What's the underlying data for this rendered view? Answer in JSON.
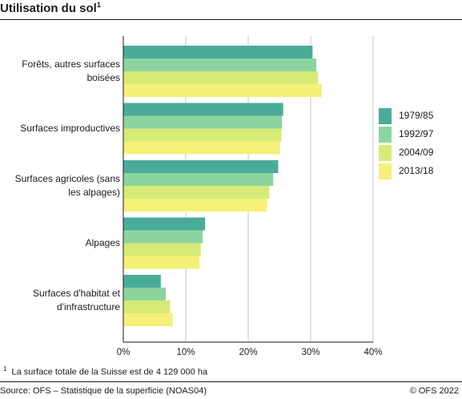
{
  "header": {
    "title": "Utilisation du sol",
    "title_marker": "1"
  },
  "chart_data": {
    "type": "bar",
    "orientation": "horizontal",
    "categories": [
      "Forêts, autres surfaces boisées",
      "Surfaces improductives",
      "Surfaces agricoles (sans les alpages)",
      "Alpages",
      "Surfaces d'habitat et d'infrastructure"
    ],
    "series": [
      {
        "name": "1979/85",
        "color": "#4aab9a",
        "values": [
          30.3,
          25.6,
          24.8,
          13.1,
          6.0
        ]
      },
      {
        "name": "1992/97",
        "color": "#8cd49f",
        "values": [
          30.9,
          25.4,
          24.0,
          12.7,
          6.8
        ]
      },
      {
        "name": "2004/09",
        "color": "#d6ea77",
        "values": [
          31.2,
          25.3,
          23.4,
          12.4,
          7.5
        ]
      },
      {
        "name": "2013/18",
        "color": "#f5f078",
        "values": [
          31.8,
          25.1,
          23.0,
          12.2,
          7.9
        ]
      }
    ],
    "xlim": [
      0,
      40
    ],
    "x_ticks": [
      "0%",
      "10%",
      "20%",
      "30%",
      "40%"
    ],
    "grid": true,
    "legend_position": "right"
  },
  "footnote": {
    "marker": "1",
    "text": "La surface totale de la Suisse est de 4 129 000 ha"
  },
  "footer": {
    "source": "Source: OFS – Statistique de la superficie (NOAS04)",
    "copyright": "© OFS 2022"
  }
}
